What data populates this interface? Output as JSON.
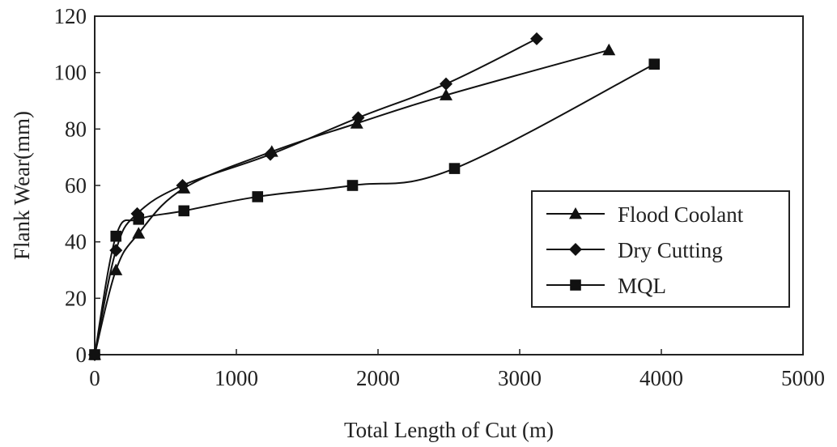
{
  "chart_data": {
    "type": "line",
    "xlabel": "Total Length of Cut (m)",
    "ylabel": "Flank Wear(mm)",
    "xlim": [
      0,
      5000
    ],
    "ylim": [
      0,
      120
    ],
    "xticks": [
      0,
      1000,
      2000,
      3000,
      4000,
      5000
    ],
    "yticks": [
      0,
      20,
      40,
      60,
      80,
      100,
      120
    ],
    "grid": false,
    "legend_position": "right",
    "series": [
      {
        "name": "Flood Coolant",
        "marker": "triangle",
        "color": "#111111",
        "x": [
          0,
          150,
          310,
          630,
          1250,
          1850,
          2480,
          3630
        ],
        "y": [
          0,
          30,
          43,
          59,
          72,
          82,
          92,
          108
        ]
      },
      {
        "name": "Dry Cutting",
        "marker": "diamond",
        "color": "#111111",
        "x": [
          0,
          150,
          300,
          620,
          1240,
          1860,
          2480,
          3120
        ],
        "y": [
          0,
          37,
          50,
          60,
          71,
          84,
          96,
          112
        ]
      },
      {
        "name": "MQL",
        "marker": "square",
        "color": "#111111",
        "x": [
          0,
          150,
          310,
          630,
          1150,
          1820,
          2540,
          3950
        ],
        "y": [
          0,
          42,
          48,
          51,
          56,
          60,
          66,
          103
        ]
      }
    ]
  }
}
